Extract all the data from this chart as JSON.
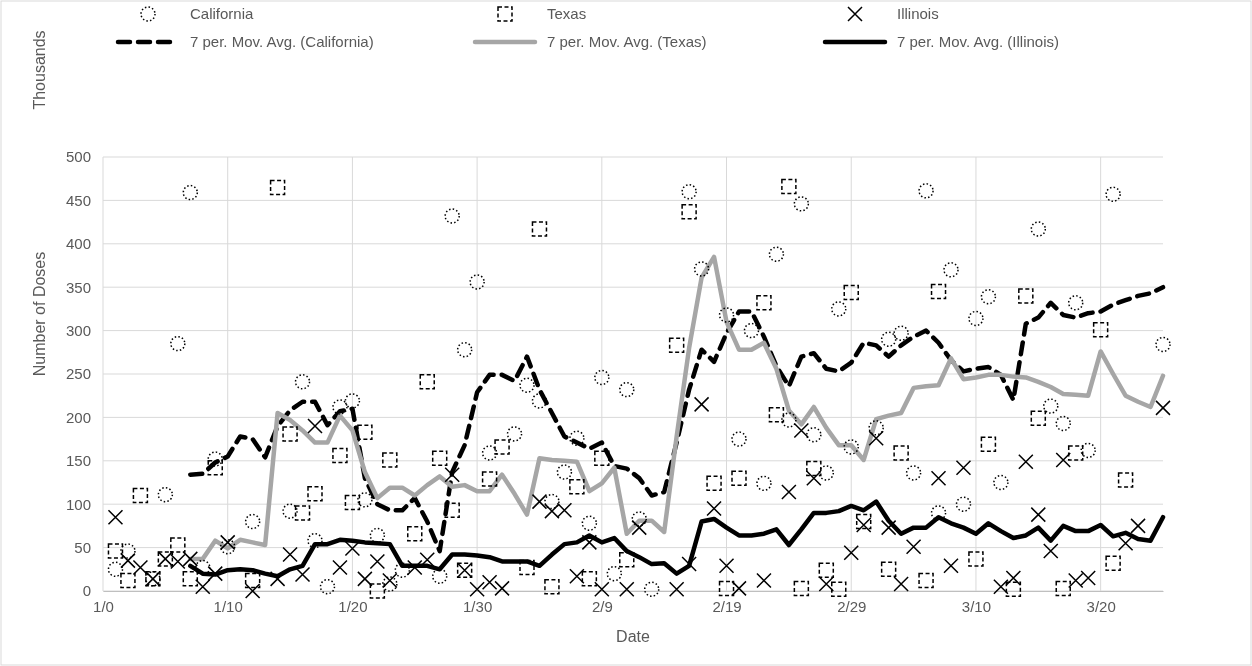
{
  "chart_data": {
    "type": "scatter",
    "xlabel": "Date",
    "ylabel": "Number of Doses",
    "annotations": [
      "Thousands"
    ],
    "categories": [
      "1/0",
      null,
      null,
      null,
      null,
      null,
      null,
      null,
      null,
      null,
      "1/10",
      null,
      null,
      null,
      null,
      null,
      null,
      null,
      null,
      null,
      "1/20",
      null,
      null,
      null,
      null,
      null,
      null,
      null,
      null,
      null,
      "1/30",
      null,
      null,
      null,
      null,
      null,
      null,
      null,
      null,
      null,
      "2/9",
      null,
      null,
      null,
      null,
      null,
      null,
      null,
      null,
      null,
      "2/19",
      null,
      null,
      null,
      null,
      null,
      null,
      null,
      null,
      null,
      "2/29",
      null,
      null,
      null,
      null,
      null,
      null,
      null,
      null,
      null,
      "3/10",
      null,
      null,
      null,
      null,
      null,
      null,
      null,
      null,
      null,
      "3/20",
      null,
      null,
      null,
      null,
      null
    ],
    "ylim": [
      0,
      500
    ],
    "yticks": [
      0,
      50,
      100,
      150,
      200,
      250,
      300,
      350,
      400,
      450,
      500
    ],
    "grid": true,
    "legend": "top",
    "series": [
      {
        "name": "California",
        "marker": "circle",
        "color": "#000000",
        "values": [
          null,
          25,
          46,
          null,
          14,
          111,
          285,
          459,
          27,
          152,
          51,
          null,
          80,
          null,
          null,
          92,
          241,
          58,
          5,
          212,
          219,
          105,
          64,
          8,
          24,
          null,
          null,
          17,
          432,
          278,
          356,
          159,
          null,
          181,
          237,
          219,
          103,
          137,
          176,
          78,
          246,
          20,
          232,
          83,
          2,
          null,
          null,
          460,
          371,
          null,
          318,
          175,
          300,
          124,
          388,
          197,
          446,
          180,
          136,
          325,
          166,
          null,
          188,
          290,
          297,
          136,
          461,
          90,
          370,
          100,
          314,
          339,
          125,
          null,
          null,
          417,
          213,
          193,
          332,
          162,
          null,
          457,
          null,
          null,
          null,
          284
        ]
      },
      {
        "name": "Texas",
        "marker": "square",
        "color": "#000000",
        "values": [
          null,
          46,
          12,
          110,
          14,
          37,
          53,
          14,
          null,
          142,
          null,
          null,
          12,
          null,
          465,
          181,
          90,
          112,
          null,
          156,
          102,
          183,
          0,
          151,
          null,
          66,
          241,
          153,
          93,
          24,
          null,
          129,
          166,
          null,
          27,
          417,
          5,
          null,
          120,
          14,
          153,
          null,
          36,
          null,
          null,
          null,
          283,
          437,
          null,
          124,
          3,
          130,
          null,
          332,
          203,
          466,
          3,
          141,
          24,
          2,
          344,
          80,
          null,
          25,
          159,
          null,
          12,
          345,
          null,
          null,
          37,
          169,
          null,
          2,
          340,
          199,
          null,
          3,
          159,
          null,
          301,
          32,
          128,
          null,
          null,
          null
        ]
      },
      {
        "name": "Illinois",
        "marker": "cross",
        "color": "#000000",
        "values": [
          null,
          85,
          35,
          27,
          14,
          37,
          34,
          37,
          5,
          20,
          56,
          null,
          0,
          null,
          14,
          42,
          19,
          190,
          null,
          27,
          49,
          14,
          34,
          12,
          null,
          27,
          36,
          null,
          134,
          24,
          2,
          10,
          3,
          null,
          null,
          103,
          92,
          93,
          17,
          56,
          2,
          null,
          2,
          73,
          null,
          null,
          2,
          31,
          215,
          95,
          29,
          3,
          null,
          12,
          null,
          114,
          185,
          130,
          8,
          null,
          44,
          76,
          176,
          73,
          8,
          51,
          null,
          130,
          29,
          142,
          null,
          null,
          5,
          15,
          149,
          88,
          46,
          151,
          12,
          15,
          null,
          null,
          55,
          75,
          null,
          211
        ]
      },
      {
        "name": "7 per. Mov. Avg. (California)",
        "type": "line",
        "line_style": "dashed",
        "color": "#000000",
        "values": [
          null,
          null,
          null,
          null,
          null,
          null,
          null,
          134,
          135,
          148,
          155,
          178,
          175,
          154,
          190,
          208,
          218,
          218,
          191,
          207,
          210,
          130,
          100,
          93,
          93,
          107,
          80,
          46,
          137,
          168,
          229,
          249,
          249,
          242,
          270,
          232,
          205,
          178,
          171,
          164,
          171,
          144,
          141,
          130,
          110,
          114,
          171,
          232,
          278,
          264,
          297,
          322,
          322,
          293,
          259,
          236,
          270,
          274,
          256,
          253,
          263,
          286,
          283,
          270,
          283,
          293,
          300,
          286,
          266,
          253,
          256,
          258,
          249,
          220,
          308,
          315,
          332,
          318,
          315,
          320,
          322,
          330,
          335,
          340,
          343,
          350
        ]
      },
      {
        "name": "7 per. Mov. Avg. (Texas)",
        "type": "line",
        "line_style": "solid",
        "color": "#a6a6a6",
        "values": [
          null,
          null,
          null,
          null,
          null,
          null,
          null,
          37,
          37,
          58,
          49,
          59,
          56,
          53,
          205,
          197,
          185,
          171,
          171,
          202,
          185,
          137,
          107,
          119,
          119,
          110,
          122,
          132,
          120,
          122,
          115,
          115,
          134,
          112,
          88,
          153,
          151,
          150,
          149,
          115,
          124,
          142,
          66,
          81,
          81,
          68,
          178,
          280,
          361,
          385,
          310,
          278,
          278,
          286,
          256,
          208,
          192,
          212,
          188,
          168,
          168,
          151,
          198,
          202,
          205,
          234,
          236,
          237,
          268,
          244,
          246,
          249,
          249,
          247,
          246,
          241,
          235,
          227,
          226,
          225,
          276,
          250,
          225,
          218,
          212,
          248
        ]
      },
      {
        "name": "7 per. Mov. Avg. (Illinois)",
        "type": "line",
        "line_style": "solid",
        "color": "#000000",
        "values": [
          null,
          null,
          null,
          null,
          null,
          null,
          null,
          29,
          20,
          19,
          24,
          25,
          24,
          20,
          17,
          25,
          29,
          54,
          54,
          59,
          58,
          56,
          55,
          54,
          29,
          29,
          29,
          25,
          42,
          42,
          41,
          39,
          34,
          34,
          34,
          29,
          42,
          54,
          56,
          64,
          56,
          61,
          46,
          39,
          31,
          32,
          20,
          29,
          80,
          83,
          73,
          64,
          64,
          66,
          71,
          53,
          71,
          90,
          90,
          92,
          98,
          93,
          103,
          81,
          66,
          73,
          73,
          85,
          78,
          73,
          66,
          78,
          69,
          61,
          64,
          73,
          58,
          75,
          69,
          69,
          76,
          63,
          67,
          60,
          58,
          85
        ]
      }
    ]
  }
}
